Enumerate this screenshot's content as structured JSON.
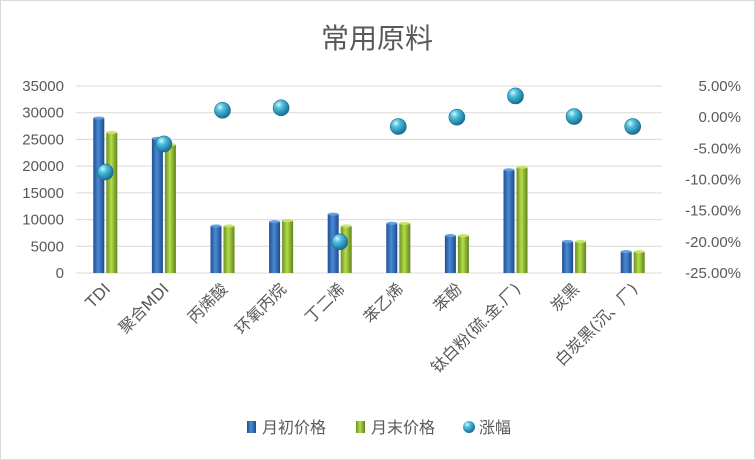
{
  "chart_data": {
    "type": "bar",
    "title": "常用原料",
    "categories": [
      "TDI",
      "聚合MDI",
      "丙烯酸",
      "环氧丙烷",
      "丁二烯",
      "苯乙烯",
      "苯酚",
      "钛白粉(硫.金.厂)",
      "炭黑",
      "白炭黑(沉、厂)"
    ],
    "series": [
      {
        "name": "月初价格",
        "type": "bar",
        "axis": "left",
        "color": "#2e6fb8",
        "values": [
          29000,
          25200,
          8800,
          9600,
          11000,
          9300,
          7000,
          19300,
          5900,
          4000
        ]
      },
      {
        "name": "月末价格",
        "type": "bar",
        "axis": "left",
        "color": "#8dbb2b",
        "values": [
          26300,
          24000,
          8800,
          9800,
          8800,
          9300,
          7000,
          19800,
          5900,
          4000
        ]
      },
      {
        "name": "涨幅",
        "type": "scatter",
        "axis": "right",
        "color": "#2aa3c8",
        "values": [
          -0.088,
          -0.043,
          0.011,
          0.015,
          -0.2,
          -0.015,
          0.0,
          0.034,
          0.001,
          -0.015
        ]
      }
    ],
    "left_axis": {
      "ylim": [
        0,
        35000
      ],
      "ticks": [
        "0",
        "5000",
        "10000",
        "15000",
        "20000",
        "25000",
        "30000",
        "35000"
      ]
    },
    "right_axis": {
      "ylim": [
        -0.25,
        0.05
      ],
      "ticks": [
        "-25.00%",
        "-20.00%",
        "-15.00%",
        "-10.00%",
        "-5.00%",
        "0.00%",
        "5.00%"
      ]
    },
    "grid": true,
    "legend": "bottom"
  }
}
